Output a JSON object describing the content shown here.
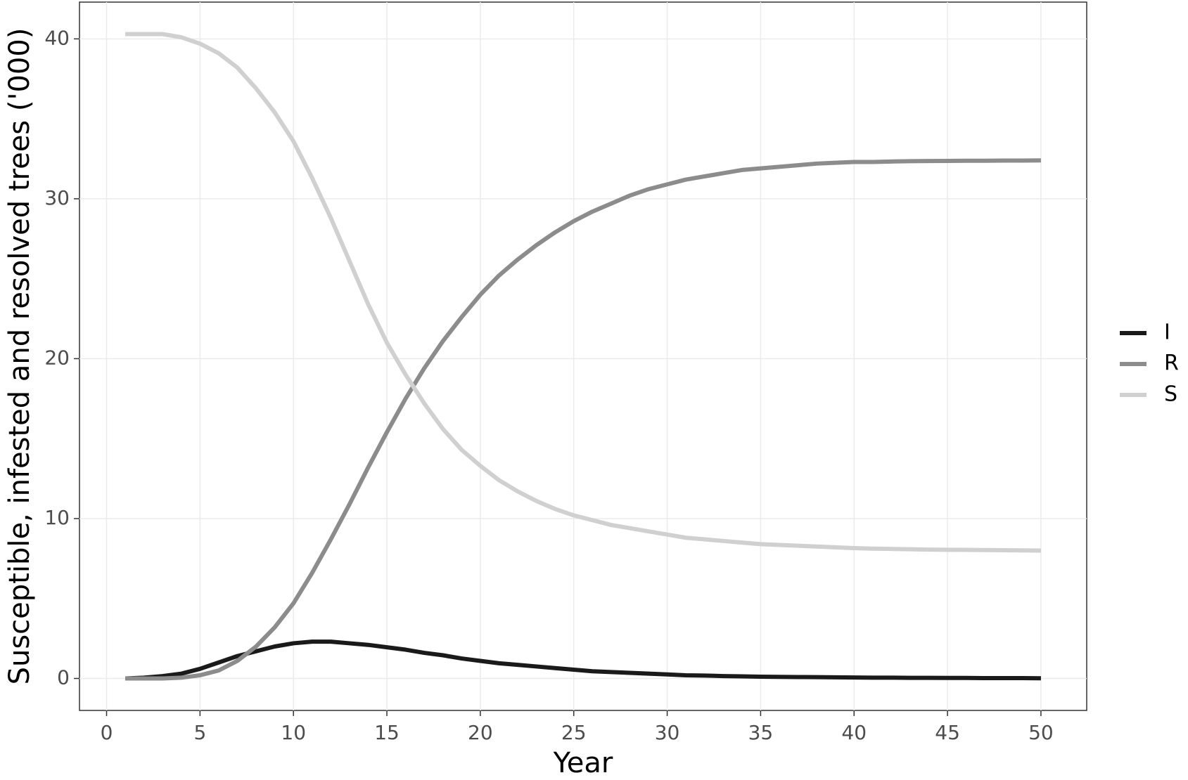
{
  "chart_data": {
    "type": "line",
    "x_label": "Year",
    "y_label": "Susceptible, infested and resolved trees ('000)",
    "x": [
      1,
      2,
      3,
      4,
      5,
      6,
      7,
      8,
      9,
      10,
      11,
      12,
      13,
      14,
      15,
      16,
      17,
      18,
      19,
      20,
      21,
      22,
      23,
      24,
      25,
      26,
      27,
      28,
      29,
      30,
      31,
      32,
      33,
      34,
      35,
      36,
      37,
      38,
      39,
      40,
      41,
      42,
      43,
      44,
      45,
      46,
      47,
      48,
      49,
      50
    ],
    "series": [
      {
        "name": "I",
        "color": "#1a1a1a",
        "values": [
          0,
          0.05,
          0.15,
          0.3,
          0.6,
          1.0,
          1.4,
          1.7,
          2.0,
          2.2,
          2.3,
          2.3,
          2.2,
          2.1,
          1.95,
          1.8,
          1.6,
          1.45,
          1.25,
          1.1,
          0.95,
          0.85,
          0.75,
          0.65,
          0.55,
          0.45,
          0.4,
          0.35,
          0.3,
          0.25,
          0.2,
          0.18,
          0.15,
          0.13,
          0.11,
          0.1,
          0.09,
          0.08,
          0.07,
          0.06,
          0.05,
          0.05,
          0.04,
          0.04,
          0.03,
          0.03,
          0.02,
          0.02,
          0.02,
          0.01
        ]
      },
      {
        "name": "R",
        "color": "#8c8c8c",
        "values": [
          0,
          0,
          0,
          0.05,
          0.2,
          0.5,
          1.1,
          2.0,
          3.2,
          4.7,
          6.6,
          8.7,
          10.9,
          13.2,
          15.4,
          17.5,
          19.4,
          21.1,
          22.6,
          24.0,
          25.2,
          26.2,
          27.1,
          27.9,
          28.6,
          29.2,
          29.7,
          30.2,
          30.6,
          30.9,
          31.2,
          31.4,
          31.6,
          31.8,
          31.9,
          32.0,
          32.1,
          32.2,
          32.25,
          32.3,
          32.3,
          32.33,
          32.35,
          32.36,
          32.37,
          32.38,
          32.38,
          32.39,
          32.39,
          32.4
        ]
      },
      {
        "name": "S",
        "color": "#d0d0d0",
        "values": [
          40.3,
          40.3,
          40.3,
          40.1,
          39.7,
          39.1,
          38.2,
          36.9,
          35.4,
          33.6,
          31.3,
          28.8,
          26.1,
          23.4,
          21.0,
          19.0,
          17.2,
          15.6,
          14.3,
          13.3,
          12.4,
          11.7,
          11.1,
          10.6,
          10.2,
          9.9,
          9.6,
          9.4,
          9.2,
          9.0,
          8.8,
          8.7,
          8.6,
          8.5,
          8.4,
          8.35,
          8.3,
          8.25,
          8.2,
          8.15,
          8.12,
          8.1,
          8.08,
          8.06,
          8.05,
          8.04,
          8.03,
          8.02,
          8.01,
          8.0
        ]
      }
    ],
    "xlim": [
      -1.45,
      52.45
    ],
    "xticks": [
      0,
      5,
      10,
      15,
      20,
      25,
      30,
      35,
      40,
      45,
      50
    ],
    "ylim": [
      -2.0,
      42.3
    ],
    "yticks": [
      0,
      10,
      20,
      30,
      40
    ],
    "grid": true,
    "legend_position": "right"
  }
}
